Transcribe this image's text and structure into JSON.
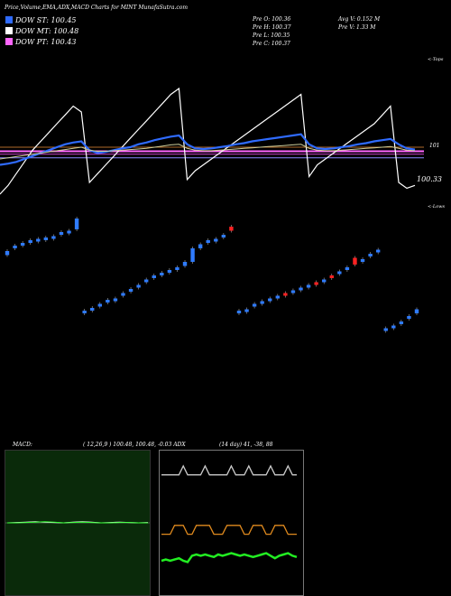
{
  "header": {
    "title": "Price,Volume,EMA,ADX,MACD Charts for MINT MunafaSutra.com",
    "dow_st": "DOW ST: 100.45",
    "dow_mt": "DOW MT: 100.48",
    "dow_pt": "DOW PT: 100.43",
    "dow_st_color": "#2f6bff",
    "dow_mt_color": "#ffffff",
    "dow_pt_color": "#ff66ff",
    "prev_o": "Pre   O: 100.36",
    "prev_h": "Pre   H: 100.37",
    "prev_l": "Pre   L: 100.35",
    "prev_c": "Pre   C: 100.37",
    "avg_v": "Avg V: 0.152  M",
    "pre_v": "Pre   V: 1.33 M"
  },
  "price_panel": {
    "tops_label": "<-Tops",
    "lows_label": "<-Lows",
    "level_101": "101",
    "last_price": "100.33"
  },
  "indicators": {
    "macd_label": "MACD:",
    "macd_values": "( 12,26,9 ) 100.48,  100.48,  -0.03 ADX",
    "adx_values": "(14  day) 41,  -38,  88"
  },
  "chart_data": [
    {
      "type": "line",
      "name_hint": "price-emas",
      "series": [
        {
          "color": "#ffffff",
          "values": [
            100.2,
            100.35,
            100.55,
            100.75,
            100.95,
            101.1,
            101.25,
            101.4,
            101.55,
            101.7,
            101.6,
            100.4,
            100.55,
            100.7,
            100.85,
            101.0,
            101.15,
            101.3,
            101.45,
            101.6,
            101.75,
            101.9,
            102.0,
            100.45,
            100.6,
            100.7,
            100.8,
            100.9,
            101.0,
            101.1,
            101.2,
            101.3,
            101.4,
            101.5,
            101.6,
            101.7,
            101.8,
            101.9,
            100.5,
            100.7,
            100.8,
            100.9,
            101.0,
            101.1,
            101.2,
            101.3,
            101.4,
            101.55,
            101.7,
            100.4,
            100.3,
            100.35
          ]
        },
        {
          "color": "#2f6bff",
          "values": [
            100.7,
            100.72,
            100.75,
            100.8,
            100.85,
            100.9,
            100.95,
            101.0,
            101.05,
            101.08,
            101.1,
            100.95,
            100.9,
            100.92,
            100.95,
            100.98,
            101.0,
            101.05,
            101.08,
            101.12,
            101.15,
            101.18,
            101.2,
            101.05,
            100.98,
            100.97,
            100.98,
            101.0,
            101.02,
            101.05,
            101.07,
            101.1,
            101.12,
            101.14,
            101.16,
            101.18,
            101.2,
            101.22,
            101.05,
            100.98,
            100.97,
            100.98,
            101.0,
            101.02,
            101.05,
            101.07,
            101.1,
            101.12,
            101.14,
            101.05,
            100.98,
            100.96
          ]
        },
        {
          "color": "#cccc99",
          "values": [
            100.8,
            100.82,
            100.84,
            100.86,
            100.88,
            100.9,
            100.92,
            100.94,
            100.96,
            100.98,
            101.0,
            100.95,
            100.93,
            100.93,
            100.94,
            100.95,
            100.96,
            100.97,
            100.98,
            101.0,
            101.02,
            101.04,
            101.05,
            100.98,
            100.95,
            100.94,
            100.94,
            100.95,
            100.96,
            100.97,
            100.98,
            100.99,
            101.0,
            101.01,
            101.02,
            101.03,
            101.04,
            101.05,
            100.98,
            100.95,
            100.94,
            100.94,
            100.95,
            100.96,
            100.97,
            100.98,
            100.99,
            101.0,
            101.01,
            100.98,
            100.95,
            100.94
          ]
        }
      ],
      "levels": [
        {
          "value": 101.0,
          "color": "#b06a2a"
        },
        {
          "value": 100.93,
          "color": "#ff66ff"
        },
        {
          "value": 100.88,
          "color": "#cc44cc"
        },
        {
          "value": 100.82,
          "color": "#8888ff"
        }
      ],
      "ylim": [
        100.2,
        102.2
      ]
    },
    {
      "type": "candlestick",
      "name_hint": "daily-candles",
      "points": [
        {
          "o": 100.55,
          "c": 100.58,
          "up": true
        },
        {
          "o": 100.6,
          "c": 100.62,
          "up": true
        },
        {
          "o": 100.63,
          "c": 100.64,
          "up": true
        },
        {
          "o": 100.64,
          "c": 100.66,
          "up": true
        },
        {
          "o": 100.66,
          "c": 100.67,
          "up": true
        },
        {
          "o": 100.67,
          "c": 100.68,
          "up": true
        },
        {
          "o": 100.68,
          "c": 100.69,
          "up": true
        },
        {
          "o": 100.7,
          "c": 100.72,
          "up": true
        },
        {
          "o": 100.72,
          "c": 100.73,
          "up": true
        },
        {
          "o": 100.74,
          "c": 100.82,
          "up": true
        },
        {
          "o": 100.12,
          "c": 100.14,
          "up": true
        },
        {
          "o": 100.15,
          "c": 100.16,
          "up": true
        },
        {
          "o": 100.17,
          "c": 100.19,
          "up": true
        },
        {
          "o": 100.2,
          "c": 100.22,
          "up": true
        },
        {
          "o": 100.22,
          "c": 100.23,
          "up": true
        },
        {
          "o": 100.25,
          "c": 100.27,
          "up": true
        },
        {
          "o": 100.28,
          "c": 100.3,
          "up": true
        },
        {
          "o": 100.32,
          "c": 100.33,
          "up": true
        },
        {
          "o": 100.35,
          "c": 100.37,
          "up": true
        },
        {
          "o": 100.38,
          "c": 100.4,
          "up": true
        },
        {
          "o": 100.4,
          "c": 100.42,
          "up": true
        },
        {
          "o": 100.43,
          "c": 100.44,
          "up": true
        },
        {
          "o": 100.44,
          "c": 100.46,
          "up": true
        },
        {
          "o": 100.47,
          "c": 100.5,
          "up": true
        },
        {
          "o": 100.5,
          "c": 100.6,
          "up": true
        },
        {
          "o": 100.6,
          "c": 100.63,
          "up": true
        },
        {
          "o": 100.64,
          "c": 100.66,
          "up": true
        },
        {
          "o": 100.66,
          "c": 100.67,
          "up": true
        },
        {
          "o": 100.68,
          "c": 100.7,
          "up": true
        },
        {
          "o": 100.73,
          "c": 100.76,
          "up": false
        },
        {
          "o": 100.12,
          "c": 100.14,
          "up": true
        },
        {
          "o": 100.14,
          "c": 100.15,
          "up": true
        },
        {
          "o": 100.17,
          "c": 100.19,
          "up": true
        },
        {
          "o": 100.2,
          "c": 100.21,
          "up": true
        },
        {
          "o": 100.22,
          "c": 100.23,
          "up": true
        },
        {
          "o": 100.24,
          "c": 100.25,
          "up": true
        },
        {
          "o": 100.26,
          "c": 100.27,
          "up": false
        },
        {
          "o": 100.28,
          "c": 100.29,
          "up": true
        },
        {
          "o": 100.3,
          "c": 100.31,
          "up": true
        },
        {
          "o": 100.32,
          "c": 100.33,
          "up": true
        },
        {
          "o": 100.34,
          "c": 100.35,
          "up": false
        },
        {
          "o": 100.36,
          "c": 100.37,
          "up": true
        },
        {
          "o": 100.38,
          "c": 100.4,
          "up": false
        },
        {
          "o": 100.42,
          "c": 100.43,
          "up": true
        },
        {
          "o": 100.44,
          "c": 100.46,
          "up": true
        },
        {
          "o": 100.48,
          "c": 100.53,
          "up": false
        },
        {
          "o": 100.5,
          "c": 100.52,
          "up": true
        },
        {
          "o": 100.54,
          "c": 100.56,
          "up": true
        },
        {
          "o": 100.57,
          "c": 100.59,
          "up": true
        },
        {
          "o": 100.0,
          "c": 100.01,
          "up": true
        },
        {
          "o": 100.02,
          "c": 100.03,
          "up": true
        },
        {
          "o": 100.05,
          "c": 100.06,
          "up": true
        },
        {
          "o": 100.08,
          "c": 100.1,
          "up": true
        },
        {
          "o": 100.12,
          "c": 100.15,
          "up": true
        }
      ],
      "ylim": [
        99.9,
        100.9
      ]
    },
    {
      "type": "line",
      "name_hint": "macd",
      "series": [
        {
          "color": "#ffffff",
          "values": [
            0.0,
            0.01,
            0.02,
            0.03,
            0.02,
            0.01,
            0.0,
            0.02,
            0.03,
            0.02,
            0.0,
            0.01,
            0.02,
            0.01,
            0.0,
            0.01
          ]
        },
        {
          "color": "#33ff33",
          "values": [
            0.0,
            0.0,
            0.01,
            0.02,
            0.03,
            0.02,
            0.0,
            0.01,
            0.02,
            0.01,
            0.0,
            0.0,
            0.01,
            0.01,
            0.0,
            0.0
          ]
        }
      ],
      "ylim": [
        -1,
        1
      ]
    },
    {
      "type": "line",
      "name_hint": "adx",
      "series": [
        {
          "color": "#cccccc",
          "values": [
            88,
            88,
            88,
            88,
            88,
            95,
            88,
            88,
            88,
            88,
            95,
            88,
            88,
            88,
            88,
            88,
            95,
            88,
            88,
            88,
            95,
            88,
            88,
            88,
            88,
            95,
            88,
            88,
            88,
            95,
            88,
            88
          ]
        },
        {
          "color": "#e08a1e",
          "values": [
            41,
            41,
            41,
            48,
            48,
            48,
            41,
            41,
            48,
            48,
            48,
            48,
            41,
            41,
            41,
            48,
            48,
            48,
            48,
            41,
            41,
            48,
            48,
            48,
            41,
            41,
            48,
            48,
            48,
            41,
            41,
            41
          ]
        },
        {
          "color": "#22ee22",
          "values": [
            20,
            21,
            20,
            21,
            22,
            20,
            19,
            24,
            25,
            24,
            25,
            24,
            23,
            25,
            24,
            25,
            26,
            25,
            24,
            25,
            24,
            23,
            24,
            25,
            26,
            24,
            22,
            24,
            25,
            26,
            24,
            23
          ]
        }
      ],
      "ylim": [
        0,
        100
      ]
    }
  ]
}
